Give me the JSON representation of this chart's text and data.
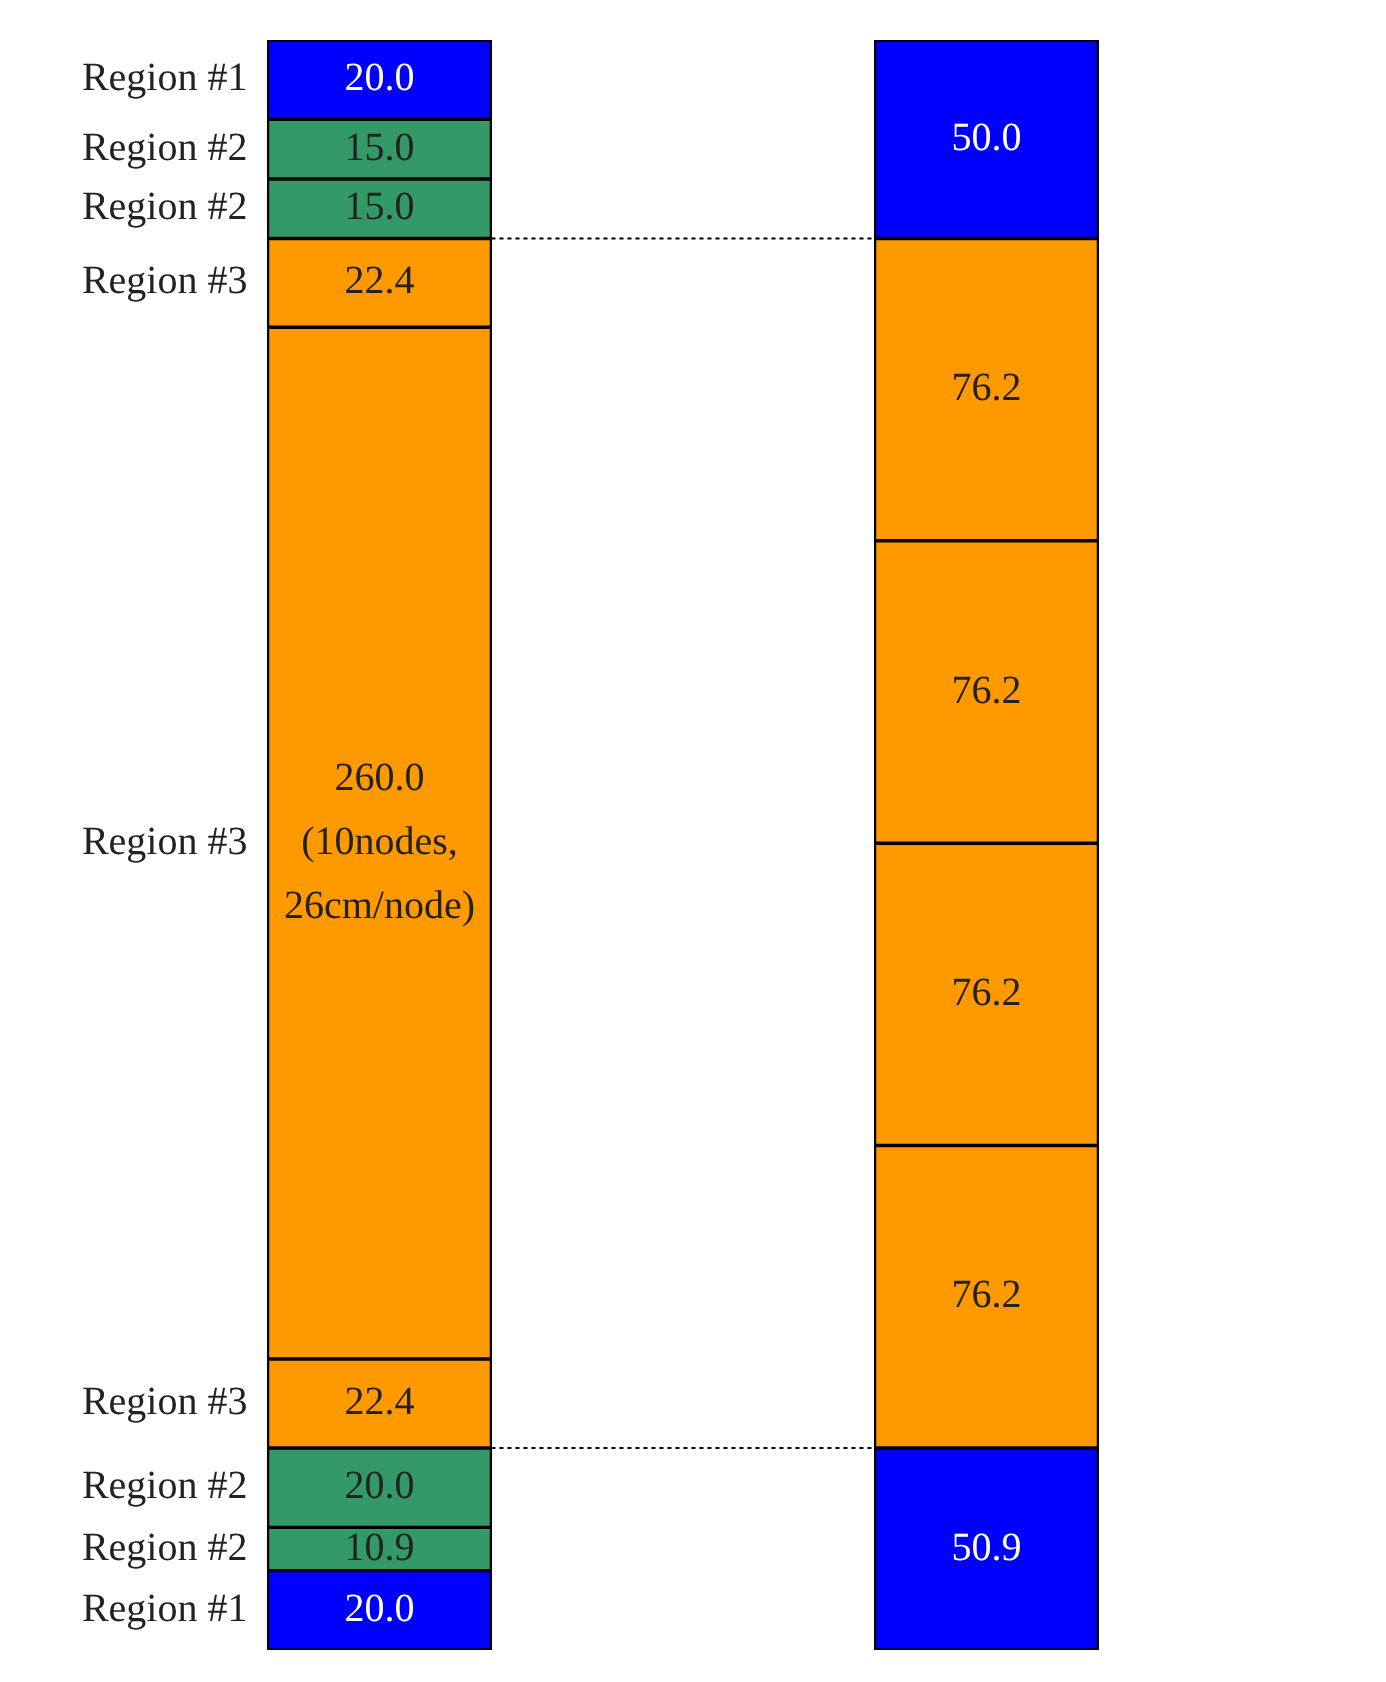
{
  "chart_data": {
    "type": "bar",
    "stacked": true,
    "categories": [
      null,
      null
    ],
    "tick_labels": false,
    "legend": false,
    "series": [
      {
        "name": "Region #1",
        "color": "#0000ff",
        "values": [
          20.0,
          null
        ],
        "value_labels": [
          "20.0",
          null
        ]
      },
      {
        "name": "Region #2",
        "color": "#339966",
        "values": [
          10.9,
          null
        ],
        "value_labels": [
          "10.9",
          null
        ]
      },
      {
        "name": "Region #2",
        "color": "#339966",
        "values": [
          20.0,
          null
        ],
        "value_labels": [
          "20.0",
          null
        ]
      },
      {
        "name": "Region #3",
        "color": "#ff9900",
        "values": [
          22.4,
          null
        ],
        "value_labels": [
          "22.4",
          null
        ]
      },
      {
        "name": "Region #3",
        "color": "#ff9900",
        "values": [
          260.0,
          null
        ],
        "value_labels": [
          "260.0\n(10nodes,\n26cm/node)",
          null
        ]
      },
      {
        "name": "Region #3",
        "color": "#ff9900",
        "values": [
          22.4,
          null
        ],
        "value_labels": [
          "22.4",
          null
        ]
      },
      {
        "name": "Region #2",
        "color": "#339966",
        "values": [
          15.0,
          null
        ],
        "value_labels": [
          "15.0",
          null
        ]
      },
      {
        "name": "Region #2",
        "color": "#339966",
        "values": [
          15.0,
          null
        ],
        "value_labels": [
          "15.0",
          null
        ]
      },
      {
        "name": "Region #1",
        "color": "#0000ff",
        "values": [
          20.0,
          null
        ],
        "value_labels": [
          "20.0",
          null
        ]
      },
      {
        "color": "#0000ff",
        "values": [
          null,
          50.9
        ],
        "value_labels": [
          null,
          "50.9"
        ]
      },
      {
        "color": "#ff9900",
        "values": [
          null,
          76.2
        ],
        "value_labels": [
          null,
          "76.2"
        ]
      },
      {
        "color": "#ff9900",
        "values": [
          null,
          76.2
        ],
        "value_labels": [
          null,
          "76.2"
        ]
      },
      {
        "color": "#ff9900",
        "values": [
          null,
          76.2
        ],
        "value_labels": [
          null,
          "76.2"
        ]
      },
      {
        "color": "#ff9900",
        "values": [
          null,
          76.2
        ],
        "value_labels": [
          null,
          "76.2"
        ]
      },
      {
        "color": "#0000ff",
        "values": [
          null,
          50.0
        ],
        "value_labels": [
          null,
          "50.0"
        ]
      }
    ],
    "ref_lines": [
      {
        "axis": "y",
        "value": 50.9,
        "color": "#000000",
        "line_style": "dotted"
      },
      {
        "axis": "y",
        "value": 355.7,
        "color": "#000000",
        "line_style": "dotted"
      }
    ]
  }
}
